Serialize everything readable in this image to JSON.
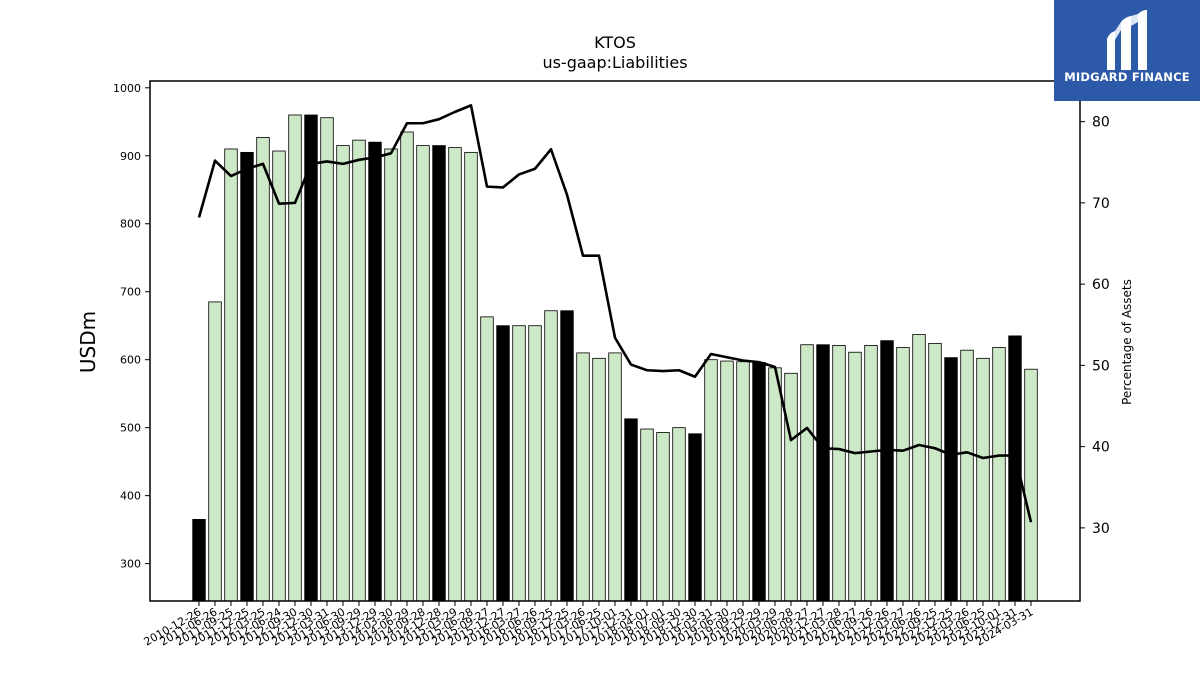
{
  "chart_data": {
    "type": "bar",
    "title": "KTOS",
    "subtitle": "us-gaap:Liabilities",
    "ylabel": "USDm",
    "y2label": "Percentage of Assets",
    "ylim": [
      245,
      1010
    ],
    "y2lim": [
      21,
      85
    ],
    "yticks": [
      300,
      400,
      500,
      600,
      700,
      800,
      900,
      1000
    ],
    "y2ticks": [
      30,
      40,
      50,
      60,
      70,
      80
    ],
    "categories": [
      "2010-12-26",
      "2011-06-26",
      "2011-09-25",
      "2011-12-25",
      "2012-03-25",
      "2012-06-24",
      "2012-09-30",
      "2012-12-30",
      "2013-03-31",
      "2013-06-30",
      "2013-09-29",
      "2013-12-29",
      "2014-03-30",
      "2014-06-29",
      "2014-09-28",
      "2014-12-28",
      "2015-03-29",
      "2015-06-28",
      "2015-09-27",
      "2015-12-27",
      "2016-03-27",
      "2016-06-26",
      "2016-09-25",
      "2016-12-25",
      "2017-03-26",
      "2017-06-25",
      "2017-10-01",
      "2017-12-31",
      "2018-04-01",
      "2018-07-01",
      "2018-09-30",
      "2018-12-30",
      "2019-03-31",
      "2019-06-30",
      "2019-09-29",
      "2019-12-29",
      "2020-03-29",
      "2020-06-28",
      "2020-09-27",
      "2020-12-27",
      "2021-03-28",
      "2021-06-27",
      "2021-09-26",
      "2021-12-26",
      "2022-03-27",
      "2022-06-26",
      "2022-09-25",
      "2022-12-25",
      "2023-03-26",
      "2023-06-25",
      "2023-10-01",
      "2023-12-31",
      "2024-03-31"
    ],
    "tick_labels": [
      "2010-12-26",
      "2011-06-26",
      "2011-09-25",
      "2011-12-25",
      "2012-03-25",
      "2012-06-24",
      "2012-09-30",
      "2012-12-30",
      "2013-03-31",
      "2013-06-30",
      "2013-09-29",
      "2013-12-29",
      "2014-03-30",
      "2014-06-29",
      "2014-09-28",
      "2014-12-28",
      "2015-03-29",
      "2015-06-28",
      "2015-09-27",
      "2015-12-27",
      "2016-03-27",
      "2016-06-26",
      "2016-09-25",
      "2016-12-25",
      "2017-03-26",
      "2017-06-25",
      "2017-10-01",
      "2017-12-31",
      "2018-04-01",
      "2018-07-01",
      "2018-09-30",
      "2018-12-30",
      "2019-03-31",
      "2019-06-30",
      "2019-09-29",
      "2019-12-29",
      "2020-03-29",
      "2020-06-28",
      "2020-09-27",
      "2020-12-27",
      "2021-03-28",
      "2021-06-27",
      "2021-09-26",
      "2021-12-26",
      "2022-03-27",
      "2022-06-26",
      "2022-09-25",
      "2022-12-25",
      "2023-03-26",
      "2023-06-25",
      "2023-10-01",
      "2023-12-31",
      "2024-03-31"
    ],
    "series": [
      {
        "type": "bar",
        "axis": "left",
        "values": [
          365,
          685,
          910,
          905,
          927,
          907,
          960,
          960,
          956,
          915,
          923,
          920,
          910,
          935,
          915,
          915,
          912,
          905,
          663,
          650,
          650,
          650,
          672,
          672,
          610,
          602,
          610,
          513,
          498,
          493,
          500,
          491,
          600,
          598,
          597,
          596,
          588,
          580,
          622,
          622,
          621,
          611,
          621,
          628,
          618,
          637,
          624,
          603,
          614,
          602,
          618,
          635,
          586
        ],
        "highlight": [
          1,
          0,
          0,
          1,
          0,
          0,
          0,
          1,
          0,
          0,
          0,
          1,
          0,
          0,
          0,
          1,
          0,
          0,
          0,
          1,
          0,
          0,
          0,
          1,
          0,
          0,
          0,
          1,
          0,
          0,
          0,
          1,
          0,
          0,
          0,
          1,
          0,
          0,
          0,
          1,
          0,
          0,
          0,
          1,
          0,
          0,
          0,
          1,
          0,
          0,
          0,
          1,
          0
        ]
      },
      {
        "type": "line",
        "axis": "right",
        "values": [
          68.2,
          75.2,
          73.3,
          74.2,
          74.8,
          69.9,
          70.0,
          74.8,
          75.1,
          74.8,
          75.3,
          75.6,
          76.1,
          79.8,
          79.8,
          80.3,
          81.2,
          82.0,
          72.0,
          71.9,
          73.5,
          74.2,
          76.6,
          71.0,
          63.5,
          63.5,
          53.4,
          50.1,
          49.4,
          49.3,
          49.4,
          48.6,
          51.4,
          51.0,
          50.6,
          50.4,
          49.8,
          40.8,
          42.3,
          39.8,
          39.7,
          39.2,
          39.4,
          39.6,
          39.5,
          40.2,
          39.8,
          39.0,
          39.3,
          38.6,
          38.9,
          38.9,
          30.7
        ]
      }
    ],
    "colors": {
      "bar": "#cde8c6",
      "bar_highlight": "#000000",
      "bar_edge": "#000000",
      "line": "#000000"
    }
  },
  "logo": {
    "text": "MIDGARD FINANCE",
    "background": "#2d5aa8"
  }
}
